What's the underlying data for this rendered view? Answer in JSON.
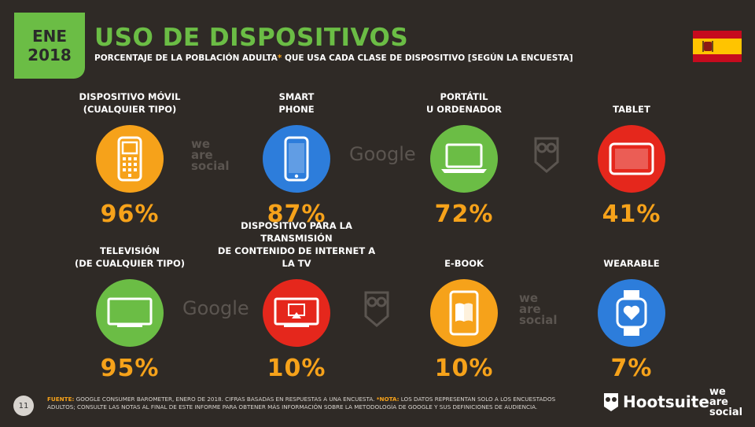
{
  "header": {
    "date_month": "ENE",
    "date_year": "2018",
    "title": "USO DE DISPOSITIVOS",
    "subtitle_a": "PORCENTAJE DE LA POBLACIÓN ADULTA",
    "subtitle_star": "*",
    "subtitle_b": " QUE USA CADA CLASE DE DISPOSITIVO [SEGÚN LA ENCUESTA]"
  },
  "colors": {
    "orange": "#f6a21a",
    "blue": "#2d7ddb",
    "green": "#6bbd45",
    "red": "#e5271c",
    "background": "#2f2a26"
  },
  "devices": [
    {
      "label1": "DISPOSITIVO MÓVIL",
      "label2": "(CUALQUIER TIPO)",
      "value": "96%",
      "icon": "feature-phone-icon",
      "color": "orange"
    },
    {
      "label1": "SMART",
      "label2": "PHONE",
      "value": "87%",
      "icon": "smartphone-icon",
      "color": "blue"
    },
    {
      "label1": "PORTÁTIL",
      "label2": "U ORDENADOR",
      "value": "72%",
      "icon": "laptop-icon",
      "color": "green"
    },
    {
      "label1": "",
      "label2": "TABLET",
      "value": "41%",
      "icon": "tablet-icon",
      "color": "red"
    },
    {
      "label1": "TELEVISIÓN",
      "label2": "(DE CUALQUIER TIPO)",
      "value": "95%",
      "icon": "television-icon",
      "color": "green"
    },
    {
      "label1": "DISPOSITIVO PARA LA TRANSMISIÓN",
      "label2": "DE CONTENIDO DE INTERNET A LA TV",
      "value": "10%",
      "icon": "streaming-tv-icon",
      "color": "red"
    },
    {
      "label1": "",
      "label2": "E-BOOK",
      "value": "10%",
      "icon": "ebook-icon",
      "color": "orange"
    },
    {
      "label1": "",
      "label2": "WEARABLE",
      "value": "7%",
      "icon": "smartwatch-icon",
      "color": "blue"
    }
  ],
  "watermarks": {
    "google": "Google",
    "was1": "we",
    "was2": "are",
    "was3": "social"
  },
  "footer": {
    "page": "11",
    "source_key": "FUENTE:",
    "source_text": " GOOGLE CONSUMER BAROMETER, ENERO DE 2018. CIFRAS BASADAS EN RESPUESTAS A UNA ENCUESTA. ",
    "note_key": "*NOTA:",
    "note_text": " LOS DATOS REPRESENTAN SOLO A LOS ENCUESTADOS ADULTOS; CONSULTE LAS NOTAS AL FINAL DE ESTE INFORME PARA OBTENER MÁS INFORMACIÓN SOBRE LA METODOLOGÍA DE GOOGLE Y SUS DEFINICIONES DE AUDIENCIA.",
    "hootsuite": "Hootsuite",
    "was1": "we",
    "was2": "are",
    "was3": "social"
  }
}
